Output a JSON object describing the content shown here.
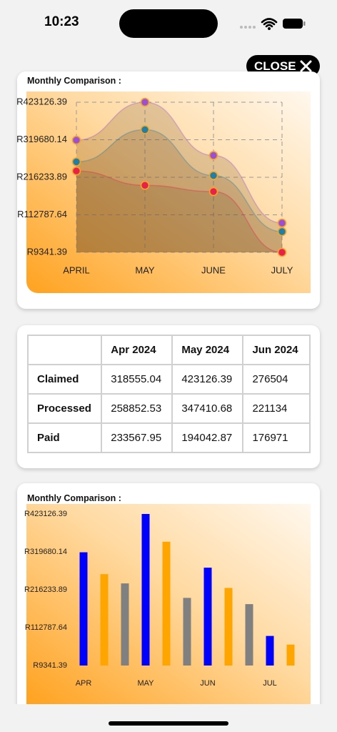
{
  "status_bar": {
    "time": "10:23"
  },
  "close_button": {
    "label": "CLOSE"
  },
  "chart_data": [
    {
      "type": "line",
      "title": "Monthly Comparison :",
      "categories": [
        "APRIL",
        "MAY",
        "JUNE",
        "JULY"
      ],
      "series": [
        {
          "color": "#9b4fd9",
          "values": [
            318555.04,
            423126.39,
            276504,
            90124
          ]
        },
        {
          "color": "#1f7fa8",
          "values": [
            258852.53,
            347410.68,
            221134,
            66483
          ]
        },
        {
          "color": "#e8204e",
          "values": [
            233567.95,
            194042.87,
            176971,
            9341.39
          ]
        }
      ],
      "ylim": [
        9341.39,
        423126.39
      ],
      "yticks": [
        {
          "value": 9341.39,
          "label": "R9341.39"
        },
        {
          "value": 112787.64,
          "label": "R112787.64"
        },
        {
          "value": 216233.89,
          "label": "R216233.89"
        },
        {
          "value": 319680.14,
          "label": "R319680.14"
        },
        {
          "value": 423126.39,
          "label": "R423126.39"
        }
      ],
      "grid": true
    },
    {
      "type": "bar",
      "title": "Monthly Comparison :",
      "categories": [
        "APR",
        "MAY",
        "JUN",
        "JUL"
      ],
      "series": [
        {
          "color": "#0000ff",
          "values": [
            318555.04,
            423126.39,
            276504,
            90124
          ]
        },
        {
          "color": "#ffa500",
          "values": [
            258852.53,
            347410.68,
            221134,
            66483
          ]
        },
        {
          "color": "#808080",
          "values": [
            233567.95,
            194042.87,
            176971,
            9341.39
          ]
        }
      ],
      "ylim": [
        9341.39,
        423126.39
      ],
      "yticks": [
        {
          "value": 9341.39,
          "label": "R9341.39"
        },
        {
          "value": 112787.64,
          "label": "R112787.64"
        },
        {
          "value": 216233.89,
          "label": "R216233.89"
        },
        {
          "value": 319680.14,
          "label": "R319680.14"
        },
        {
          "value": 423126.39,
          "label": "R423126.39"
        }
      ],
      "grid": false
    }
  ],
  "table": {
    "columns": [
      "Apr 2024",
      "May 2024",
      "Jun 2024"
    ],
    "rows": [
      {
        "label": "Claimed",
        "cells": [
          "318555.04",
          "423126.39",
          "276504"
        ]
      },
      {
        "label": "Processed",
        "cells": [
          "258852.53",
          "347410.68",
          "221134"
        ]
      },
      {
        "label": "Paid",
        "cells": [
          "233567.95",
          "194042.87",
          "176971"
        ]
      }
    ]
  }
}
